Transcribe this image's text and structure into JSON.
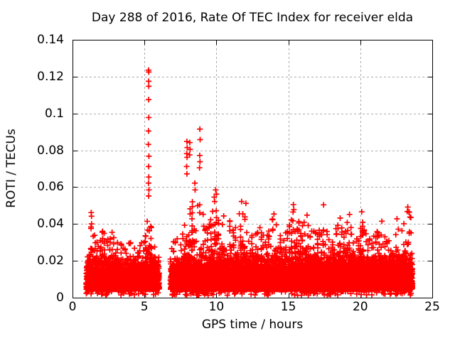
{
  "chart_data": {
    "type": "scatter",
    "title": "Day 288 of 2016, Rate Of TEC Index for receiver elda",
    "xlabel": "GPS time / hours",
    "ylabel": "ROTI / TECUs",
    "xlim": [
      0,
      25
    ],
    "ylim": [
      0,
      0.14
    ],
    "xticks": [
      0,
      5,
      10,
      15,
      20,
      25
    ],
    "xtick_labels": [
      "0",
      "5",
      "10",
      "15",
      "20",
      "25"
    ],
    "yticks": [
      0,
      0.02,
      0.04,
      0.06,
      0.08,
      0.1,
      0.12,
      0.14
    ],
    "ytick_labels": [
      "0",
      "0.02",
      "0.04",
      "0.06",
      "0.08",
      "0.1",
      "0.12",
      "0.14"
    ],
    "grid": true,
    "legend": "none",
    "colors": {
      "grid": "#aaaaaa",
      "frame": "#000000",
      "text": "#000000",
      "background": "#ffffff"
    },
    "series": [
      {
        "name": "ROTI",
        "marker": "plus",
        "color": "#ff0000",
        "marker_size_px": 9,
        "time_coverage_hours": [
          [
            0.95,
            6.03
          ],
          [
            6.8,
            23.62
          ]
        ],
        "noise_floor_tecu": 0.004,
        "dense_band_top_typical": 0.022,
        "upper_envelope": [
          [
            0.95,
            0.028
          ],
          [
            1.15,
            0.034
          ],
          [
            1.3,
            0.047
          ],
          [
            1.45,
            0.036
          ],
          [
            1.7,
            0.031
          ],
          [
            1.95,
            0.037
          ],
          [
            2.2,
            0.04
          ],
          [
            2.45,
            0.034
          ],
          [
            2.7,
            0.037
          ],
          [
            2.95,
            0.034
          ],
          [
            3.2,
            0.031
          ],
          [
            3.45,
            0.029
          ],
          [
            3.7,
            0.034
          ],
          [
            3.95,
            0.031
          ],
          [
            4.2,
            0.031
          ],
          [
            4.5,
            0.026
          ],
          [
            4.75,
            0.029
          ],
          [
            5.0,
            0.033
          ],
          [
            5.3,
            0.05
          ],
          [
            5.55,
            0.036
          ],
          [
            5.8,
            0.026
          ],
          [
            6.03,
            0.022
          ],
          [
            6.8,
            0.024
          ],
          [
            7.1,
            0.034
          ],
          [
            7.4,
            0.031
          ],
          [
            7.7,
            0.036
          ],
          [
            7.95,
            0.05
          ],
          [
            8.2,
            0.055
          ],
          [
            8.5,
            0.05
          ],
          [
            8.85,
            0.058
          ],
          [
            9.1,
            0.045
          ],
          [
            9.4,
            0.038
          ],
          [
            9.7,
            0.047
          ],
          [
            9.9,
            0.055
          ],
          [
            10.15,
            0.042
          ],
          [
            10.4,
            0.048
          ],
          [
            10.7,
            0.038
          ],
          [
            10.95,
            0.043
          ],
          [
            11.2,
            0.036
          ],
          [
            11.5,
            0.042
          ],
          [
            11.75,
            0.052
          ],
          [
            12.0,
            0.046
          ],
          [
            12.3,
            0.038
          ],
          [
            12.6,
            0.034
          ],
          [
            12.9,
            0.04
          ],
          [
            13.2,
            0.036
          ],
          [
            13.5,
            0.033
          ],
          [
            13.75,
            0.04
          ],
          [
            14.0,
            0.047
          ],
          [
            14.3,
            0.036
          ],
          [
            14.6,
            0.034
          ],
          [
            14.9,
            0.039
          ],
          [
            15.15,
            0.044
          ],
          [
            15.4,
            0.051
          ],
          [
            15.65,
            0.044
          ],
          [
            15.9,
            0.04
          ],
          [
            16.2,
            0.043
          ],
          [
            16.5,
            0.037
          ],
          [
            16.8,
            0.039
          ],
          [
            17.1,
            0.035
          ],
          [
            17.45,
            0.048
          ],
          [
            17.7,
            0.036
          ],
          [
            18.0,
            0.035
          ],
          [
            18.3,
            0.039
          ],
          [
            18.6,
            0.043
          ],
          [
            18.9,
            0.037
          ],
          [
            19.2,
            0.045
          ],
          [
            19.5,
            0.038
          ],
          [
            19.8,
            0.036
          ],
          [
            20.1,
            0.046
          ],
          [
            20.4,
            0.038
          ],
          [
            20.7,
            0.033
          ],
          [
            21.0,
            0.036
          ],
          [
            21.3,
            0.04
          ],
          [
            21.6,
            0.036
          ],
          [
            21.9,
            0.033
          ],
          [
            22.2,
            0.038
          ],
          [
            22.5,
            0.04
          ],
          [
            22.8,
            0.037
          ],
          [
            23.1,
            0.042
          ],
          [
            23.35,
            0.05
          ],
          [
            23.62,
            0.04
          ]
        ],
        "peak_points": [
          [
            1.3,
            0.0462
          ],
          [
            1.32,
            0.0442
          ],
          [
            5.28,
            0.1235
          ],
          [
            5.3,
            0.1225
          ],
          [
            5.29,
            0.1175
          ],
          [
            5.3,
            0.1148
          ],
          [
            5.29,
            0.1075
          ],
          [
            5.3,
            0.0978
          ],
          [
            5.28,
            0.0905
          ],
          [
            5.27,
            0.0832
          ],
          [
            5.31,
            0.0768
          ],
          [
            5.29,
            0.0712
          ],
          [
            5.3,
            0.0655
          ],
          [
            5.28,
            0.0622
          ],
          [
            5.31,
            0.0585
          ],
          [
            5.29,
            0.0552
          ],
          [
            7.95,
            0.0848
          ],
          [
            7.97,
            0.0815
          ],
          [
            7.94,
            0.0782
          ],
          [
            7.96,
            0.0762
          ],
          [
            7.93,
            0.0712
          ],
          [
            7.95,
            0.0672
          ],
          [
            8.15,
            0.0842
          ],
          [
            8.17,
            0.0805
          ],
          [
            8.14,
            0.0775
          ],
          [
            8.5,
            0.0622
          ],
          [
            8.52,
            0.0585
          ],
          [
            8.85,
            0.0915
          ],
          [
            8.87,
            0.0858
          ],
          [
            8.84,
            0.0772
          ],
          [
            8.86,
            0.0738
          ],
          [
            8.83,
            0.0705
          ],
          [
            9.85,
            0.0546
          ],
          [
            9.88,
            0.0522
          ],
          [
            9.95,
            0.0585
          ],
          [
            10.0,
            0.0562
          ],
          [
            11.75,
            0.0522
          ],
          [
            12.05,
            0.0512
          ],
          [
            14.0,
            0.0454
          ],
          [
            15.35,
            0.0505
          ],
          [
            15.38,
            0.0478
          ],
          [
            16.3,
            0.0448
          ],
          [
            17.45,
            0.0504
          ],
          [
            18.6,
            0.0432
          ],
          [
            19.25,
            0.0452
          ],
          [
            20.1,
            0.0466
          ],
          [
            21.5,
            0.0415
          ],
          [
            22.55,
            0.0428
          ],
          [
            23.3,
            0.0492
          ],
          [
            23.38,
            0.0465
          ],
          [
            23.45,
            0.0438
          ]
        ]
      }
    ],
    "generation": {
      "seed": 2016288,
      "bulk_points_per_hour": 330,
      "mid_points_per_hour": 90,
      "column_points_per_hour": 60,
      "fringe_points_per_hour": 10
    }
  }
}
